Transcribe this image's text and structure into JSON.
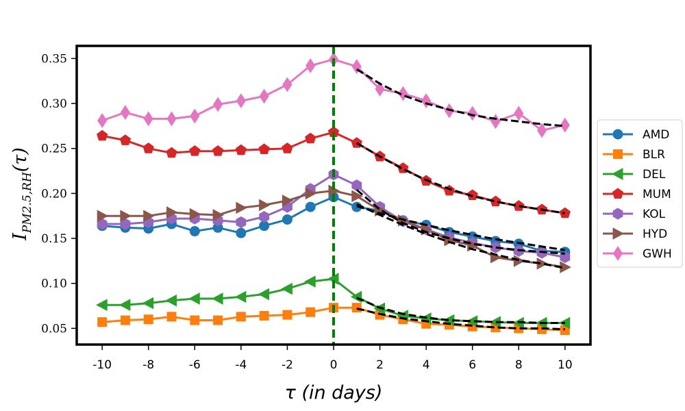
{
  "chart_data": {
    "type": "line",
    "title": "",
    "xlabel": "τ (in days)",
    "ylabel": {
      "main": "I",
      "sub": "PM2.5,RH",
      "arg": "(τ)"
    },
    "x": [
      -10,
      -9,
      -8,
      -7,
      -6,
      -5,
      -4,
      -3,
      -2,
      -1,
      0,
      1,
      2,
      3,
      4,
      5,
      6,
      7,
      8,
      9,
      10
    ],
    "xlim": [
      -11.1,
      11.1
    ],
    "ylim": [
      0.032,
      0.364
    ],
    "xticks": [
      "-10",
      "-8",
      "-6",
      "-4",
      "-2",
      "0",
      "2",
      "4",
      "6",
      "8",
      "10"
    ],
    "yticks": [
      "0.05",
      "0.10",
      "0.15",
      "0.20",
      "0.25",
      "0.30",
      "0.35"
    ],
    "vline": {
      "x": 0,
      "color": "#008000",
      "style": "dashed"
    },
    "series": [
      {
        "name": "AMD",
        "color": "#1f77b4",
        "marker": "circle",
        "values": [
          0.164,
          0.162,
          0.161,
          0.166,
          0.158,
          0.162,
          0.156,
          0.164,
          0.171,
          0.185,
          0.196,
          0.185,
          0.181,
          0.17,
          0.165,
          0.157,
          0.152,
          0.147,
          0.144,
          0.136,
          0.135
        ],
        "fit": [
          0.186,
          0.178,
          0.171,
          0.165,
          0.159,
          0.154,
          0.149,
          0.145,
          0.141,
          0.137
        ]
      },
      {
        "name": "BLR",
        "color": "#ff7f0e",
        "marker": "square",
        "values": [
          0.057,
          0.059,
          0.06,
          0.063,
          0.059,
          0.059,
          0.063,
          0.064,
          0.065,
          0.068,
          0.073,
          0.073,
          0.065,
          0.06,
          0.055,
          0.054,
          0.052,
          0.051,
          0.05,
          0.049,
          0.048
        ],
        "fit": [
          0.072,
          0.066,
          0.061,
          0.058,
          0.055,
          0.053,
          0.051,
          0.05,
          0.05,
          0.049
        ]
      },
      {
        "name": "DEL",
        "color": "#2ca02c",
        "marker": "triangle-left",
        "values": [
          0.076,
          0.076,
          0.078,
          0.081,
          0.083,
          0.083,
          0.085,
          0.088,
          0.094,
          0.102,
          0.105,
          0.085,
          0.072,
          0.064,
          0.061,
          0.059,
          0.058,
          0.057,
          0.056,
          0.056,
          0.056
        ],
        "fit": [
          0.084,
          0.073,
          0.066,
          0.062,
          0.059,
          0.058,
          0.057,
          0.057,
          0.056,
          0.056
        ]
      },
      {
        "name": "MUM",
        "color": "#d62728",
        "marker": "pentagon",
        "values": [
          0.264,
          0.259,
          0.25,
          0.245,
          0.247,
          0.247,
          0.248,
          0.249,
          0.25,
          0.261,
          0.268,
          0.256,
          0.241,
          0.228,
          0.214,
          0.203,
          0.198,
          0.191,
          0.186,
          0.182,
          0.178
        ],
        "fit": [
          0.256,
          0.241,
          0.227,
          0.215,
          0.205,
          0.197,
          0.191,
          0.186,
          0.182,
          0.178
        ]
      },
      {
        "name": "KOL",
        "color": "#9467bd",
        "marker": "hexagon",
        "values": [
          0.166,
          0.166,
          0.168,
          0.172,
          0.172,
          0.17,
          0.168,
          0.174,
          0.185,
          0.205,
          0.221,
          0.209,
          0.185,
          0.169,
          0.16,
          0.151,
          0.145,
          0.14,
          0.136,
          0.134,
          0.129
        ],
        "fit": [
          0.204,
          0.182,
          0.167,
          0.157,
          0.15,
          0.144,
          0.14,
          0.137,
          0.135,
          0.133
        ]
      },
      {
        "name": "HYD",
        "color": "#8c564b",
        "marker": "triangle-right",
        "values": [
          0.175,
          0.175,
          0.175,
          0.179,
          0.177,
          0.176,
          0.184,
          0.187,
          0.192,
          0.2,
          0.203,
          0.197,
          0.181,
          0.17,
          0.16,
          0.148,
          0.142,
          0.129,
          0.125,
          0.122,
          0.118
        ],
        "fit": [
          0.188,
          0.176,
          0.165,
          0.155,
          0.146,
          0.138,
          0.132,
          0.126,
          0.122,
          0.117
        ]
      },
      {
        "name": "GWH",
        "color": "#e377c2",
        "marker": "diamond",
        "values": [
          0.281,
          0.29,
          0.283,
          0.283,
          0.286,
          0.299,
          0.303,
          0.308,
          0.321,
          0.342,
          0.349,
          0.341,
          0.316,
          0.311,
          0.303,
          0.292,
          0.289,
          0.28,
          0.289,
          0.27,
          0.276
        ],
        "fit": [
          0.338,
          0.322,
          0.309,
          0.3,
          0.293,
          0.287,
          0.283,
          0.28,
          0.277,
          0.275
        ]
      }
    ],
    "legend_position": "right"
  }
}
